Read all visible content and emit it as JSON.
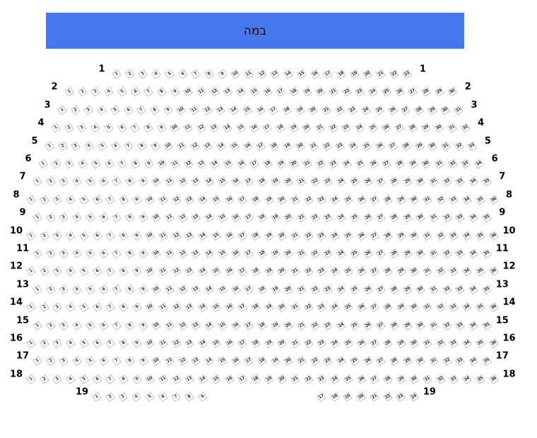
{
  "stage": {
    "label": "במה",
    "color": "#4677ee"
  },
  "rows": [
    {
      "label": "1",
      "segments": [
        {
          "first": 1,
          "last": 23
        }
      ]
    },
    {
      "label": "2",
      "segments": [
        {
          "first": 1,
          "last": 30
        }
      ]
    },
    {
      "label": "3",
      "segments": [
        {
          "first": 1,
          "last": 31
        }
      ]
    },
    {
      "label": "4",
      "segments": [
        {
          "first": 1,
          "last": 32
        }
      ]
    },
    {
      "label": "5",
      "segments": [
        {
          "first": 1,
          "last": 33
        }
      ]
    },
    {
      "label": "6",
      "segments": [
        {
          "first": 1,
          "last": 34
        }
      ]
    },
    {
      "label": "7",
      "segments": [
        {
          "first": 1,
          "last": 35
        }
      ]
    },
    {
      "label": "8",
      "segments": [
        {
          "first": 1,
          "last": 36
        }
      ]
    },
    {
      "label": "9",
      "segments": [
        {
          "first": 1,
          "last": 35
        }
      ]
    },
    {
      "label": "10",
      "segments": [
        {
          "first": 1,
          "last": 36
        }
      ]
    },
    {
      "label": "11",
      "segments": [
        {
          "first": 1,
          "last": 35
        }
      ]
    },
    {
      "label": "12",
      "segments": [
        {
          "first": 1,
          "last": 36
        }
      ]
    },
    {
      "label": "13",
      "segments": [
        {
          "first": 1,
          "last": 35
        }
      ]
    },
    {
      "label": "14",
      "segments": [
        {
          "first": 1,
          "last": 36
        }
      ]
    },
    {
      "label": "15",
      "segments": [
        {
          "first": 1,
          "last": 35
        }
      ]
    },
    {
      "label": "16",
      "segments": [
        {
          "first": 1,
          "last": 36
        }
      ]
    },
    {
      "label": "17",
      "segments": [
        {
          "first": 1,
          "last": 35
        }
      ]
    },
    {
      "label": "18",
      "segments": [
        {
          "first": 1,
          "last": 36
        }
      ]
    },
    {
      "label": "19",
      "segments": [
        {
          "first": 1,
          "last": 9
        },
        {
          "first": 17,
          "last": 24
        }
      ]
    }
  ]
}
